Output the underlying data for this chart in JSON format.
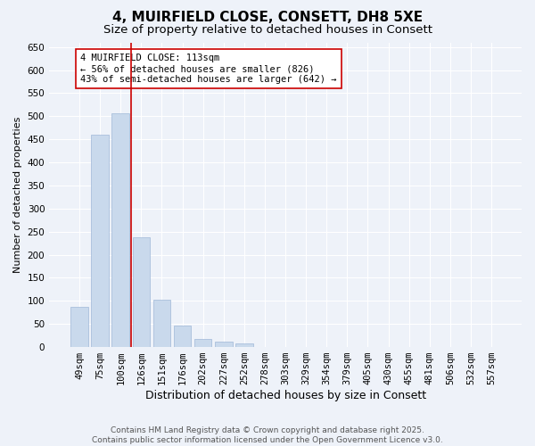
{
  "title": "4, MUIRFIELD CLOSE, CONSETT, DH8 5XE",
  "subtitle": "Size of property relative to detached houses in Consett",
  "xlabel": "Distribution of detached houses by size in Consett",
  "ylabel": "Number of detached properties",
  "categories": [
    "49sqm",
    "75sqm",
    "100sqm",
    "126sqm",
    "151sqm",
    "176sqm",
    "202sqm",
    "227sqm",
    "252sqm",
    "278sqm",
    "303sqm",
    "329sqm",
    "354sqm",
    "379sqm",
    "405sqm",
    "430sqm",
    "455sqm",
    "481sqm",
    "506sqm",
    "532sqm",
    "557sqm"
  ],
  "values": [
    88,
    460,
    507,
    238,
    103,
    47,
    18,
    12,
    8,
    1,
    0,
    0,
    0,
    0,
    1,
    0,
    0,
    0,
    1,
    0,
    1
  ],
  "bar_color": "#c9d9ec",
  "bar_edge_color": "#a0b8d8",
  "vline_x": 2.5,
  "vline_color": "#cc0000",
  "annotation_text": "4 MUIRFIELD CLOSE: 113sqm\n← 56% of detached houses are smaller (826)\n43% of semi-detached houses are larger (642) →",
  "annotation_box_color": "#ffffff",
  "annotation_box_edge": "#cc0000",
  "ylim": [
    0,
    660
  ],
  "yticks": [
    0,
    50,
    100,
    150,
    200,
    250,
    300,
    350,
    400,
    450,
    500,
    550,
    600,
    650
  ],
  "background_color": "#eef2f9",
  "grid_color": "#ffffff",
  "footer": "Contains HM Land Registry data © Crown copyright and database right 2025.\nContains public sector information licensed under the Open Government Licence v3.0.",
  "title_fontsize": 11,
  "subtitle_fontsize": 9.5,
  "xlabel_fontsize": 9,
  "ylabel_fontsize": 8,
  "tick_fontsize": 7.5,
  "annotation_fontsize": 7.5,
  "footer_fontsize": 6.5
}
